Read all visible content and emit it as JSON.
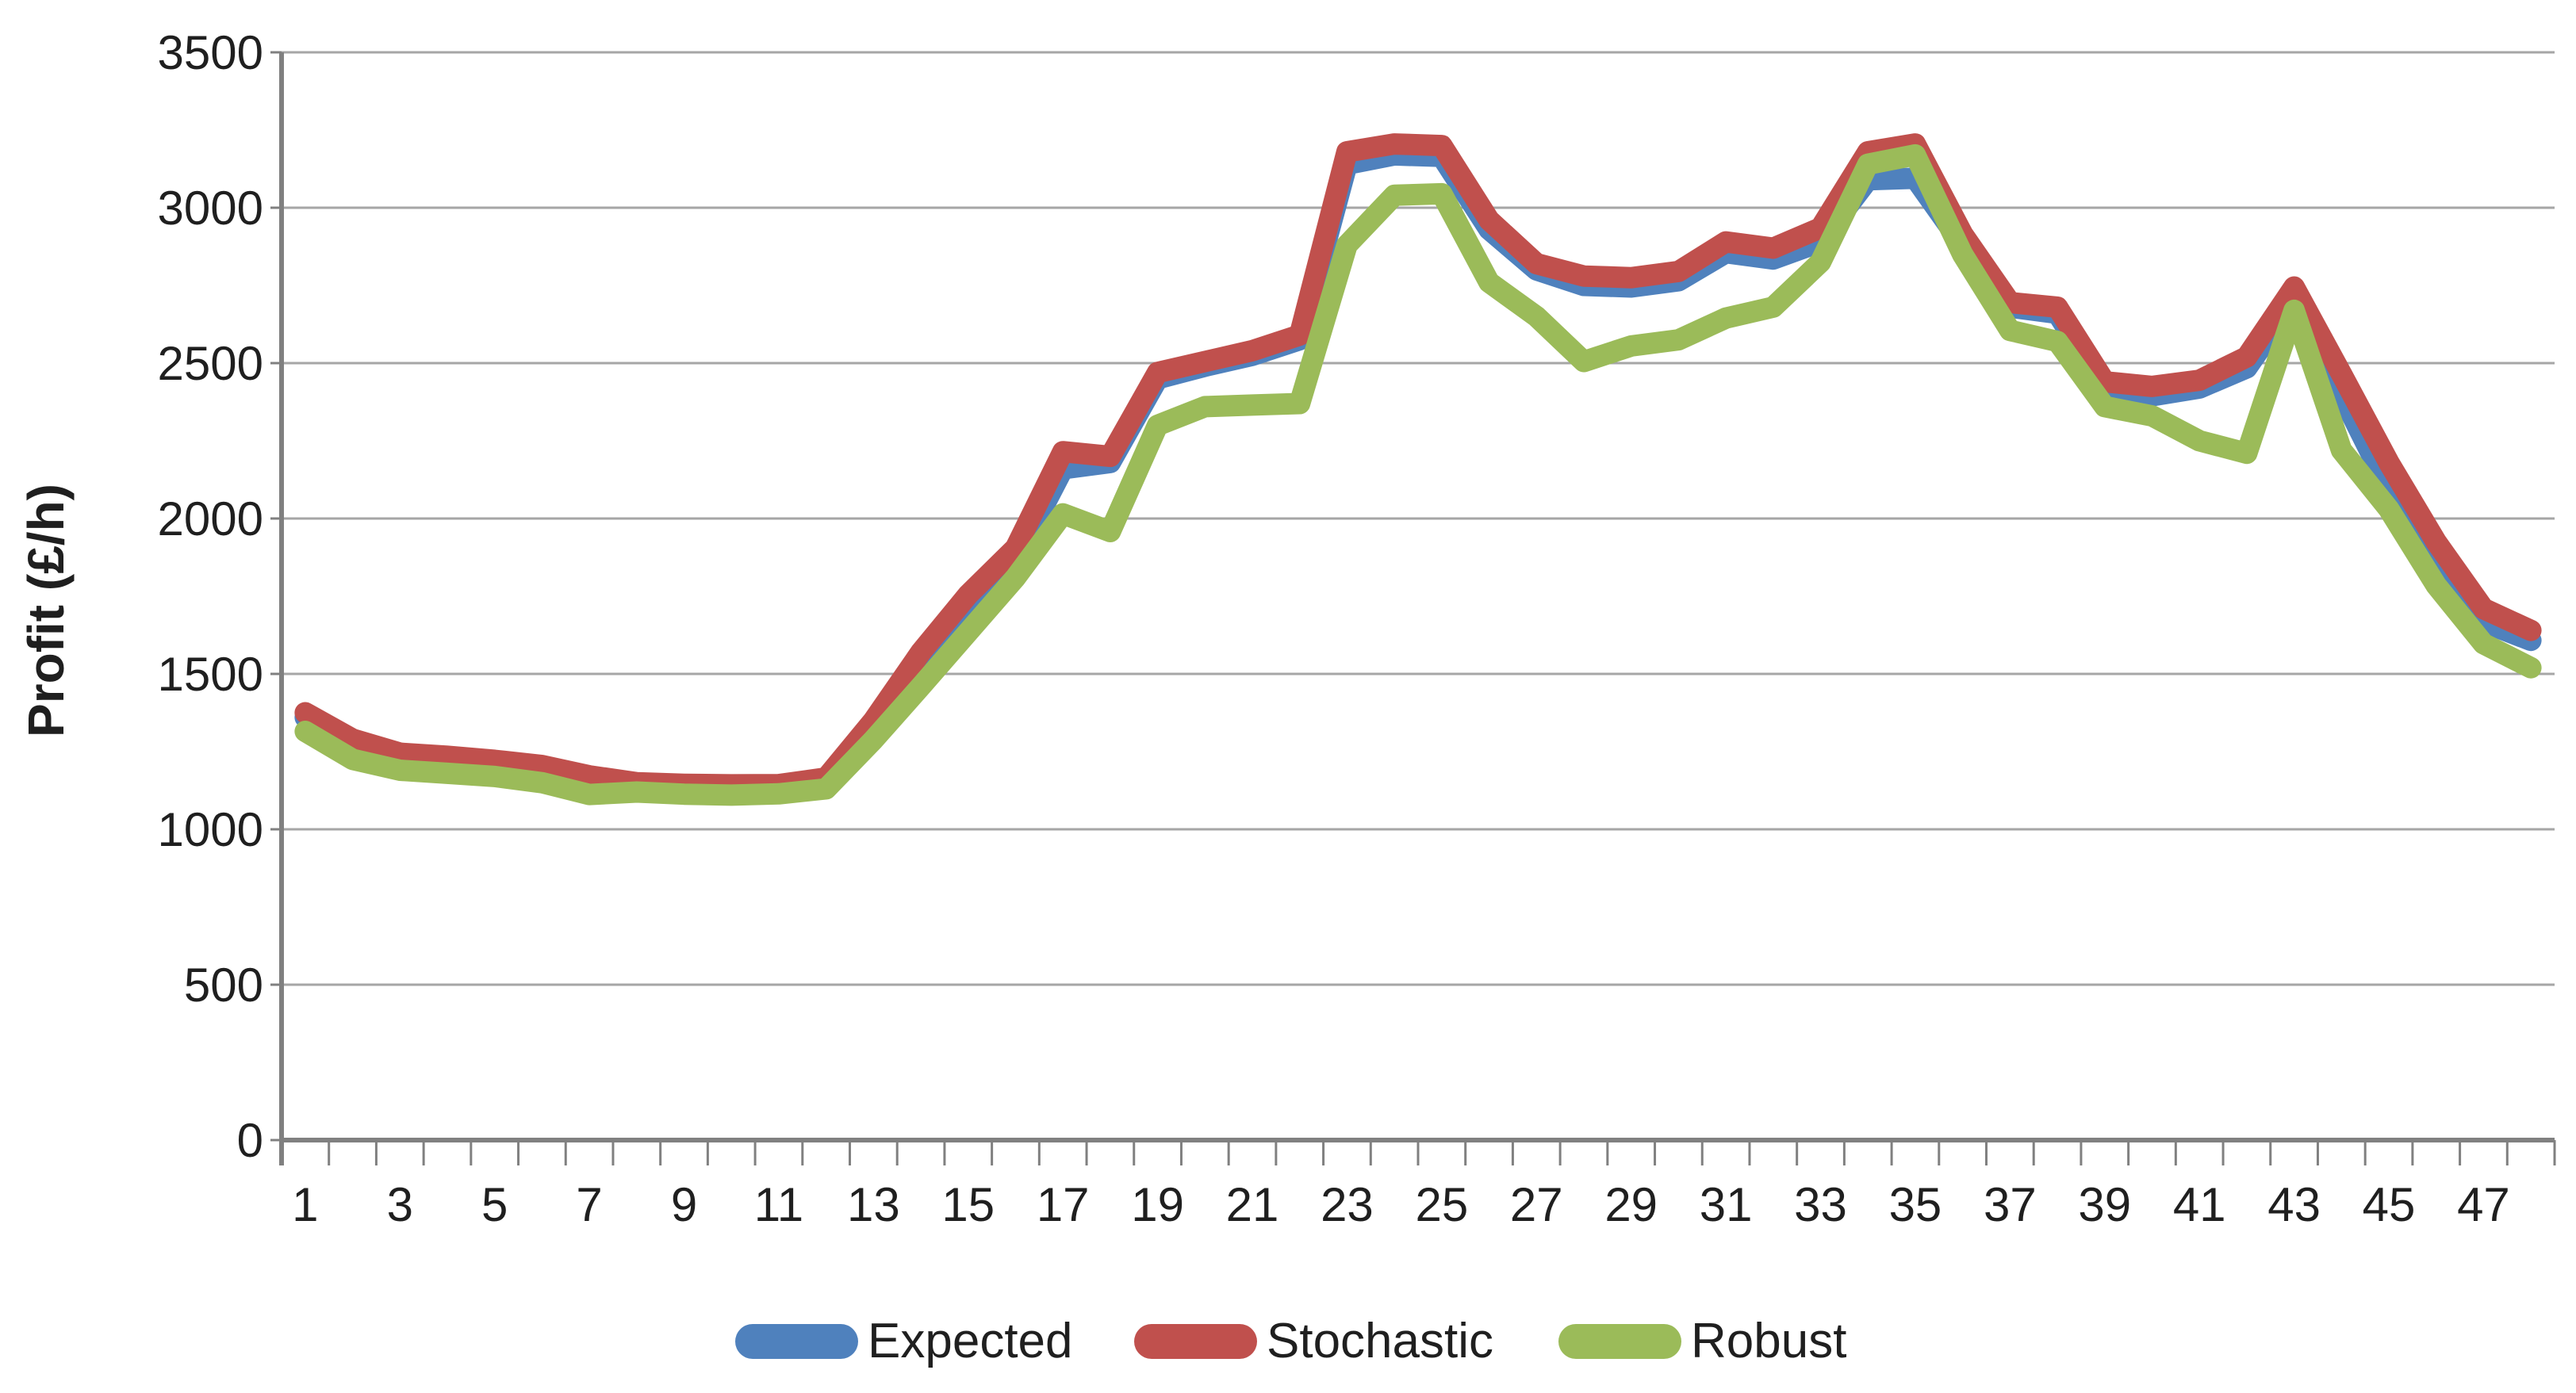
{
  "chart_data": {
    "type": "line",
    "title": "",
    "xlabel": "",
    "ylabel": "Profit (£/h)",
    "ylim": [
      0,
      3500
    ],
    "ytick_step": 500,
    "grid": "horizontal",
    "legend_position": "bottom-center",
    "x": [
      1,
      2,
      3,
      4,
      5,
      6,
      7,
      8,
      9,
      10,
      11,
      12,
      13,
      14,
      15,
      16,
      17,
      18,
      19,
      20,
      21,
      22,
      23,
      24,
      25,
      26,
      27,
      28,
      29,
      30,
      31,
      32,
      33,
      34,
      35,
      36,
      37,
      38,
      39,
      40,
      41,
      42,
      43,
      44,
      45,
      46,
      47,
      48
    ],
    "x_tick_labels_shown": [
      1,
      3,
      5,
      7,
      9,
      11,
      13,
      15,
      17,
      19,
      21,
      23,
      25,
      27,
      29,
      31,
      33,
      35,
      37,
      39,
      41,
      43,
      45,
      47
    ],
    "series": [
      {
        "name": "Expected",
        "color": "#4F81BD",
        "values": [
          1360,
          1275,
          1235,
          1225,
          1215,
          1196,
          1165,
          1142,
          1137,
          1135,
          1136,
          1157,
          1330,
          1540,
          1700,
          1865,
          2160,
          2180,
          2450,
          2490,
          2525,
          2575,
          3140,
          3170,
          3165,
          2930,
          2800,
          2750,
          2745,
          2765,
          2855,
          2835,
          2890,
          3090,
          3095,
          2880,
          2680,
          2660,
          2420,
          2395,
          2420,
          2485,
          2705,
          2400,
          2095,
          1862,
          1667,
          1608
        ]
      },
      {
        "name": "Stochastic",
        "color": "#C0504D",
        "values": [
          1375,
          1290,
          1245,
          1235,
          1222,
          1205,
          1172,
          1150,
          1145,
          1143,
          1144,
          1165,
          1350,
          1570,
          1755,
          1905,
          2215,
          2200,
          2470,
          2505,
          2540,
          2590,
          3180,
          3205,
          3200,
          2960,
          2820,
          2780,
          2775,
          2795,
          2890,
          2870,
          2935,
          3180,
          3205,
          2915,
          2695,
          2680,
          2440,
          2425,
          2445,
          2520,
          2745,
          2465,
          2180,
          1925,
          1710,
          1640
        ]
      },
      {
        "name": "Robust",
        "color": "#9BBB59",
        "values": [
          1315,
          1225,
          1190,
          1180,
          1170,
          1150,
          1112,
          1120,
          1113,
          1110,
          1114,
          1130,
          1288,
          1460,
          1635,
          1810,
          2015,
          1958,
          2300,
          2360,
          2365,
          2370,
          2880,
          3040,
          3045,
          2760,
          2650,
          2505,
          2555,
          2575,
          2645,
          2680,
          2825,
          3140,
          3170,
          2850,
          2605,
          2570,
          2360,
          2330,
          2250,
          2210,
          2670,
          2220,
          2030,
          1785,
          1597,
          1520
        ]
      }
    ]
  },
  "style": {
    "background_color": "#FFFFFF",
    "gridline_color": "#A6A6A6",
    "axis_color": "#808080",
    "text_color": "#1F1F1F"
  }
}
